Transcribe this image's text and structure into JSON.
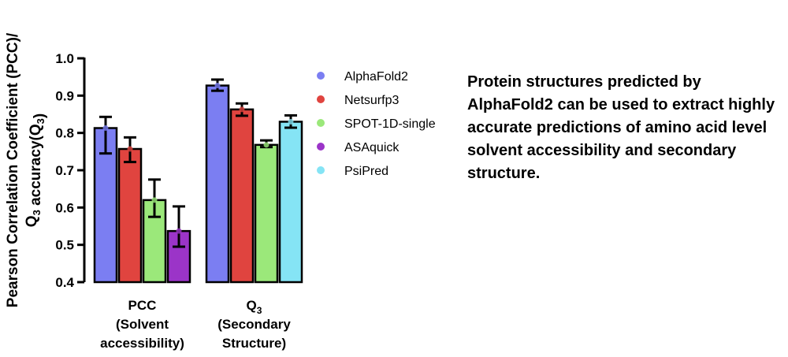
{
  "chart_data": {
    "type": "bar",
    "ylabel_line1": "Pearson Correlation Coefficient (PCC)/",
    "ylabel_line2": "Q3 accuracy(Q3)",
    "ylim": [
      0.4,
      1.0
    ],
    "yticks": [
      "0.4",
      "0.5",
      "0.6",
      "0.7",
      "0.8",
      "0.9",
      "1.0"
    ],
    "groups": [
      {
        "label_lines": [
          "PCC",
          "(Solvent",
          "accessibility)"
        ],
        "bars": [
          {
            "series": "AlphaFold2",
            "value": 0.813,
            "err_low": 0.745,
            "err_high": 0.843
          },
          {
            "series": "Netsurfp3",
            "value": 0.757,
            "err_low": 0.722,
            "err_high": 0.788
          },
          {
            "series": "SPOT-1D-single",
            "value": 0.62,
            "err_low": 0.575,
            "err_high": 0.675
          },
          {
            "series": "ASAquick",
            "value": 0.537,
            "err_low": 0.495,
            "err_high": 0.603
          }
        ]
      },
      {
        "label_lines": [
          "Q3",
          "(Secondary",
          "Structure)"
        ],
        "bars": [
          {
            "series": "AlphaFold2",
            "value": 0.927,
            "err_low": 0.913,
            "err_high": 0.943
          },
          {
            "series": "Netsurfp3",
            "value": 0.863,
            "err_low": 0.846,
            "err_high": 0.879
          },
          {
            "series": "SPOT-1D-single",
            "value": 0.768,
            "err_low": 0.762,
            "err_high": 0.78
          },
          {
            "series": "PsiPred",
            "value": 0.83,
            "err_low": 0.814,
            "err_high": 0.847
          }
        ]
      }
    ],
    "legend": [
      {
        "name": "AlphaFold2",
        "color": "#7b7ef2"
      },
      {
        "name": "Netsurfp3",
        "color": "#e0443f"
      },
      {
        "name": "SPOT-1D-single",
        "color": "#9be87a"
      },
      {
        "name": "ASAquick",
        "color": "#9b34c8"
      },
      {
        "name": "PsiPred",
        "color": "#85e4f5"
      }
    ],
    "legend_placement": "right",
    "grid": false
  },
  "caption": "Protein structures predicted by AlphaFold2 can be used to extract highly accurate predictions of amino acid level solvent accessibility and secondary structure."
}
